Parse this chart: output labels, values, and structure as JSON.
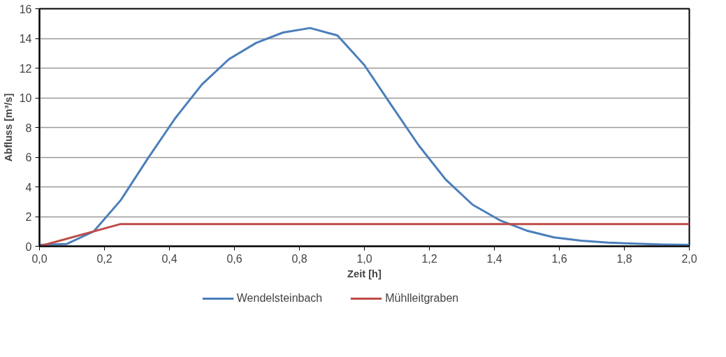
{
  "chart_data": {
    "type": "line",
    "xlabel": "Zeit [h]",
    "ylabel": "Abfluss [m³/s]",
    "xlim": [
      0,
      2
    ],
    "ylim": [
      0,
      16
    ],
    "xticks": [
      {
        "value": 0,
        "label": "0,0"
      },
      {
        "value": 0.2,
        "label": "0,2"
      },
      {
        "value": 0.4,
        "label": "0,4"
      },
      {
        "value": 0.6,
        "label": "0,6"
      },
      {
        "value": 0.8,
        "label": "0,8"
      },
      {
        "value": 1.0,
        "label": "1,0"
      },
      {
        "value": 1.2,
        "label": "1,2"
      },
      {
        "value": 1.4,
        "label": "1,4"
      },
      {
        "value": 1.6,
        "label": "1,6"
      },
      {
        "value": 1.8,
        "label": "1,8"
      },
      {
        "value": 2.0,
        "label": "2,0"
      }
    ],
    "yticks": [
      0,
      2,
      4,
      6,
      8,
      10,
      12,
      14,
      16
    ],
    "grid": "y",
    "legend": "bottom",
    "marker": "none",
    "line_style": "solid",
    "series": [
      {
        "name": "Wendelsteinbach",
        "color": "#4a7ebb",
        "x": [
          0,
          0.083,
          0.167,
          0.25,
          0.333,
          0.417,
          0.5,
          0.583,
          0.667,
          0.75,
          0.833,
          0.917,
          1.0,
          1.083,
          1.167,
          1.25,
          1.333,
          1.417,
          1.5,
          1.583,
          1.667,
          1.75,
          1.833,
          1.917,
          2.0
        ],
        "values": [
          0.1,
          0.15,
          1.0,
          3.1,
          5.9,
          8.6,
          10.9,
          12.6,
          13.7,
          14.4,
          14.7,
          14.2,
          12.2,
          9.5,
          6.8,
          4.5,
          2.8,
          1.75,
          1.05,
          0.6,
          0.38,
          0.25,
          0.18,
          0.12,
          0.1
        ]
      },
      {
        "name": "Mühlleitgraben",
        "color": "#be4b48",
        "x": [
          0,
          0.25,
          2.0
        ],
        "values": [
          0,
          1.5,
          1.5
        ]
      }
    ]
  }
}
